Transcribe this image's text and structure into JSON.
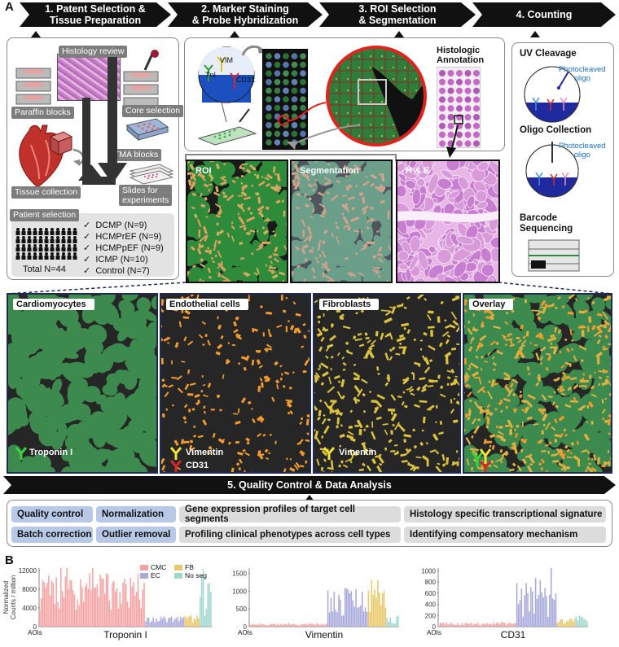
{
  "panel_a": "A",
  "panel_b": "B",
  "steps": [
    {
      "label": "1. Patent Selection &",
      "label2": "Tissue Preparation"
    },
    {
      "label": "2. Marker Staining",
      "label2": "& Probe Hybridization"
    },
    {
      "label": "3. ROI Selection",
      "label2": "& Segmentation"
    },
    {
      "label": "4. Counting",
      "label2": ""
    }
  ],
  "prep": {
    "histology_review": "Histology review",
    "paraffin_blocks": "Paraffin blocks",
    "core_selection": "Core selection",
    "tma_blocks": "TMA blocks",
    "tissue_collection": "Tissue collection",
    "slides": "Slides for",
    "slides2": "experiments",
    "patient_selection": "Patient selection",
    "total": "Total N=44",
    "groups": [
      "DCMP (N=9)",
      "HCMPrEF (N=9)",
      "HCMPpEF (N=9)",
      "ICMP (N=10)",
      "Control (N=7)"
    ]
  },
  "staining": {
    "vim": "VIM",
    "tnl": "TnI",
    "cd31": "CD31",
    "histologic": "Histologic",
    "annotation": "Annotation"
  },
  "tiles_top": {
    "roi": "ROI",
    "segmentation": "Segmentation",
    "he": "H & E"
  },
  "counting": {
    "uv": "UV Cleavage",
    "photocleaved": "Photocleaved",
    "oligo": "oligo",
    "oligo_collection": "Oligo Collection",
    "barcode": "Barcode",
    "sequencing": "Sequencing"
  },
  "segments": {
    "cardiomyocytes": "Cardiomyocytes",
    "endothelial": "Endothelial cells",
    "fibroblasts": "Fibroblasts",
    "overlay": "Overlay",
    "troponin": "Troponin I",
    "vimentin": "Vimentin",
    "cd31": "CD31",
    "vimentin2": "Vimentin"
  },
  "qc": {
    "title": "5. Quality Control & Data Analysis",
    "chips": [
      "Quality control",
      "Normalization",
      "Gene expression profiles of target cell segments",
      "Histology specific transcriptional signature",
      "Batch correction",
      "Outlier removal",
      "Profiling clinical phenotypes across cell types",
      "Identifying compensatory mechanism"
    ]
  },
  "colors": {
    "cmc": "#f4a3a3",
    "ec": "#a9a9dc",
    "fb": "#e8c86a",
    "noseg": "#9fd8cf",
    "tissue_green": "#3d8a4e",
    "endo_orange": "#f39a2c",
    "fibro_yellow": "#dcc23c"
  },
  "chart_data": [
    {
      "type": "bar",
      "xlabel": "Troponin I",
      "x_start": "AOIs",
      "ylabel": "Normalized Counts / million",
      "yticks": [
        "0",
        "4000",
        "8000",
        "12000"
      ],
      "ylim": [
        0,
        12500
      ],
      "legend": [
        "CMC",
        "EC",
        "FB",
        "No seg"
      ],
      "segments": [
        {
          "name": "CMC",
          "count": 70,
          "mean": 7500,
          "spread": 4000
        },
        {
          "name": "EC",
          "count": 26,
          "mean": 1500,
          "spread": 700
        },
        {
          "name": "FB",
          "count": 10,
          "mean": 1700,
          "spread": 900
        },
        {
          "name": "No seg",
          "count": 8,
          "mean": 6000,
          "spread": 4000
        }
      ]
    },
    {
      "type": "bar",
      "xlabel": "Vimentin",
      "x_start": "AOIs",
      "yticks": [
        "0",
        "500",
        "1000",
        "1500"
      ],
      "ylim": [
        0,
        1650
      ],
      "segments": [
        {
          "name": "CMC",
          "count": 50,
          "mean": 60,
          "spread": 25
        },
        {
          "name": "EC",
          "count": 26,
          "mean": 650,
          "spread": 450
        },
        {
          "name": "FB",
          "count": 12,
          "mean": 900,
          "spread": 500
        },
        {
          "name": "No seg",
          "count": 8,
          "mean": 200,
          "spread": 120
        }
      ]
    },
    {
      "type": "bar",
      "xlabel": "CD31",
      "x_start": "AOIs",
      "yticks": [
        "0",
        "200",
        "400",
        "600",
        "800",
        "1000"
      ],
      "ylim": [
        0,
        1050
      ],
      "segments": [
        {
          "name": "CMC",
          "count": 50,
          "mean": 50,
          "spread": 25
        },
        {
          "name": "EC",
          "count": 26,
          "mean": 520,
          "spread": 350
        },
        {
          "name": "FB",
          "count": 12,
          "mean": 110,
          "spread": 60
        },
        {
          "name": "No seg",
          "count": 8,
          "mean": 140,
          "spread": 60
        }
      ]
    }
  ]
}
